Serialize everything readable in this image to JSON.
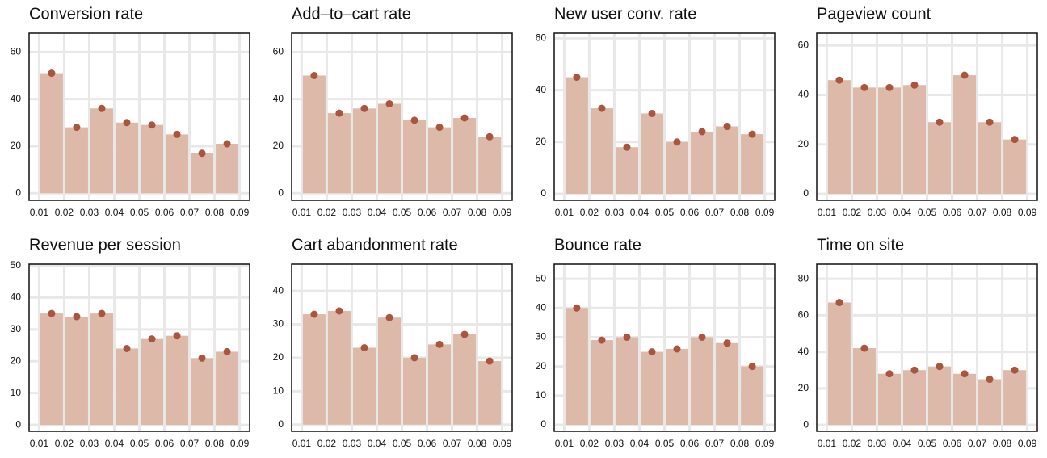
{
  "chart_data": [
    {
      "type": "histogram",
      "title": "Conversion rate",
      "bins": [
        0.01,
        0.02,
        0.03,
        0.04,
        0.05,
        0.06,
        0.07,
        0.08,
        0.09
      ],
      "counts": [
        51,
        28,
        36,
        30,
        29,
        25,
        17,
        21
      ],
      "color": "#dcb9a9",
      "marker_color": "#a9553f",
      "xlim": [
        0.006,
        0.094
      ],
      "xticks": [
        0.01,
        0.02,
        0.03,
        0.04,
        0.05,
        0.06,
        0.07,
        0.08,
        0.09
      ],
      "ylim": [
        -3,
        68
      ],
      "yticks": [
        0,
        20,
        40,
        60
      ],
      "grid": true
    },
    {
      "type": "histogram",
      "title": "Add–to–cart rate",
      "bins": [
        0.01,
        0.02,
        0.03,
        0.04,
        0.05,
        0.06,
        0.07,
        0.08,
        0.09
      ],
      "counts": [
        50,
        34,
        36,
        38,
        31,
        28,
        32,
        24
      ],
      "color": "#dcb9a9",
      "marker_color": "#a9553f",
      "xlim": [
        0.006,
        0.094
      ],
      "xticks": [
        0.01,
        0.02,
        0.03,
        0.04,
        0.05,
        0.06,
        0.07,
        0.08,
        0.09
      ],
      "ylim": [
        -3,
        68
      ],
      "yticks": [
        0,
        20,
        40,
        60
      ],
      "grid": true
    },
    {
      "type": "histogram",
      "title": "New user conv. rate",
      "bins": [
        0.01,
        0.02,
        0.03,
        0.04,
        0.05,
        0.06,
        0.07,
        0.08,
        0.09
      ],
      "counts": [
        45,
        33,
        18,
        31,
        20,
        24,
        26,
        23
      ],
      "color": "#dcb9a9",
      "marker_color": "#a9553f",
      "xlim": [
        0.006,
        0.094
      ],
      "xticks": [
        0.01,
        0.02,
        0.03,
        0.04,
        0.05,
        0.06,
        0.07,
        0.08,
        0.09
      ],
      "ylim": [
        -2.5,
        62
      ],
      "yticks": [
        0,
        20,
        40,
        60
      ],
      "grid": true
    },
    {
      "type": "histogram",
      "title": "Pageview count",
      "bins": [
        0.01,
        0.02,
        0.03,
        0.04,
        0.05,
        0.06,
        0.07,
        0.08,
        0.09
      ],
      "counts": [
        46,
        43,
        43,
        44,
        29,
        48,
        29,
        22
      ],
      "color": "#dcb9a9",
      "marker_color": "#a9553f",
      "xlim": [
        0.006,
        0.094
      ],
      "xticks": [
        0.01,
        0.02,
        0.03,
        0.04,
        0.05,
        0.06,
        0.07,
        0.08,
        0.09
      ],
      "ylim": [
        -2.6,
        65
      ],
      "yticks": [
        0,
        20,
        40,
        60
      ],
      "grid": true
    },
    {
      "type": "histogram",
      "title": "Revenue per session",
      "bins": [
        0.01,
        0.02,
        0.03,
        0.04,
        0.05,
        0.06,
        0.07,
        0.08,
        0.09
      ],
      "counts": [
        35,
        34,
        35,
        24,
        27,
        28,
        21,
        23
      ],
      "color": "#dcb9a9",
      "marker_color": "#a9553f",
      "xlim": [
        0.006,
        0.094
      ],
      "xticks": [
        0.01,
        0.02,
        0.03,
        0.04,
        0.05,
        0.06,
        0.07,
        0.08,
        0.09
      ],
      "ylim": [
        -2,
        50.5
      ],
      "yticks": [
        0,
        10,
        20,
        30,
        40,
        50
      ],
      "grid": true
    },
    {
      "type": "histogram",
      "title": "Cart abandonment rate",
      "bins": [
        0.01,
        0.02,
        0.03,
        0.04,
        0.05,
        0.06,
        0.07,
        0.08,
        0.09
      ],
      "counts": [
        33,
        34,
        23,
        32,
        20,
        24,
        27,
        19
      ],
      "color": "#dcb9a9",
      "marker_color": "#a9553f",
      "xlim": [
        0.006,
        0.094
      ],
      "xticks": [
        0.01,
        0.02,
        0.03,
        0.04,
        0.05,
        0.06,
        0.07,
        0.08,
        0.09
      ],
      "ylim": [
        -2,
        48
      ],
      "yticks": [
        0,
        10,
        20,
        30,
        40
      ],
      "grid": true
    },
    {
      "type": "histogram",
      "title": "Bounce rate",
      "bins": [
        0.01,
        0.02,
        0.03,
        0.04,
        0.05,
        0.06,
        0.07,
        0.08,
        0.09
      ],
      "counts": [
        40,
        29,
        30,
        25,
        26,
        30,
        28,
        20
      ],
      "color": "#dcb9a9",
      "marker_color": "#a9553f",
      "xlim": [
        0.006,
        0.094
      ],
      "xticks": [
        0.01,
        0.02,
        0.03,
        0.04,
        0.05,
        0.06,
        0.07,
        0.08,
        0.09
      ],
      "ylim": [
        -2.2,
        55
      ],
      "yticks": [
        0,
        10,
        20,
        30,
        40,
        50
      ],
      "grid": true
    },
    {
      "type": "histogram",
      "title": "Time on site",
      "bins": [
        0.01,
        0.02,
        0.03,
        0.04,
        0.05,
        0.06,
        0.07,
        0.08,
        0.09
      ],
      "counts": [
        67,
        42,
        28,
        30,
        32,
        28,
        25,
        30
      ],
      "color": "#dcb9a9",
      "marker_color": "#a9553f",
      "xlim": [
        0.006,
        0.094
      ],
      "xticks": [
        0.01,
        0.02,
        0.03,
        0.04,
        0.05,
        0.06,
        0.07,
        0.08,
        0.09
      ],
      "ylim": [
        -3.5,
        88
      ],
      "yticks": [
        0,
        20,
        40,
        60,
        80
      ],
      "grid": true
    }
  ]
}
